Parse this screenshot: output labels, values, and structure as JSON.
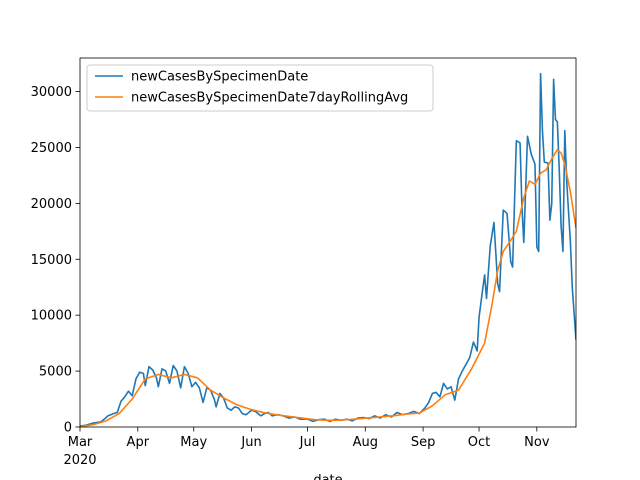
{
  "chart_data": {
    "type": "line",
    "title": "",
    "xlabel": "date",
    "ylabel": "",
    "x_ticks": [
      "Mar",
      "Apr",
      "May",
      "Jun",
      "Jul",
      "Aug",
      "Sep",
      "Oct",
      "Nov"
    ],
    "x_year_label": "2020",
    "x_range": [
      "2020-03-01",
      "2020-11-22"
    ],
    "y_ticks": [
      0,
      5000,
      10000,
      15000,
      20000,
      25000,
      30000
    ],
    "y_tick_labels": [
      "0",
      "5000",
      "10000",
      "15000",
      "20000",
      "25000",
      "30000"
    ],
    "ylim": [
      0,
      33000
    ],
    "grid": false,
    "legend_position": "top-left",
    "colors": {
      "daily": "#1f77b4",
      "rolling": "#ff7f0e"
    },
    "series": [
      {
        "name": "newCasesBySpecimenDate",
        "points": [
          [
            "2020-03-01",
            100
          ],
          [
            "2020-03-04",
            150
          ],
          [
            "2020-03-08",
            350
          ],
          [
            "2020-03-12",
            450
          ],
          [
            "2020-03-14",
            700
          ],
          [
            "2020-03-16",
            1000
          ],
          [
            "2020-03-19",
            1200
          ],
          [
            "2020-03-21",
            1300
          ],
          [
            "2020-03-23",
            2300
          ],
          [
            "2020-03-25",
            2700
          ],
          [
            "2020-03-27",
            3200
          ],
          [
            "2020-03-29",
            2800
          ],
          [
            "2020-03-31",
            4300
          ],
          [
            "2020-04-02",
            4900
          ],
          [
            "2020-04-04",
            4800
          ],
          [
            "2020-04-05",
            3700
          ],
          [
            "2020-04-07",
            5400
          ],
          [
            "2020-04-09",
            5100
          ],
          [
            "2020-04-11",
            4400
          ],
          [
            "2020-04-12",
            3600
          ],
          [
            "2020-04-14",
            5200
          ],
          [
            "2020-04-16",
            5000
          ],
          [
            "2020-04-18",
            3900
          ],
          [
            "2020-04-20",
            5500
          ],
          [
            "2020-04-22",
            5000
          ],
          [
            "2020-04-24",
            3500
          ],
          [
            "2020-04-26",
            5400
          ],
          [
            "2020-04-28",
            4800
          ],
          [
            "2020-04-30",
            3600
          ],
          [
            "2020-05-02",
            4000
          ],
          [
            "2020-05-04",
            3500
          ],
          [
            "2020-05-06",
            2200
          ],
          [
            "2020-05-08",
            3500
          ],
          [
            "2020-05-10",
            3300
          ],
          [
            "2020-05-12",
            2500
          ],
          [
            "2020-05-13",
            1800
          ],
          [
            "2020-05-15",
            3000
          ],
          [
            "2020-05-17",
            2600
          ],
          [
            "2020-05-19",
            1700
          ],
          [
            "2020-05-21",
            1500
          ],
          [
            "2020-05-23",
            1800
          ],
          [
            "2020-05-25",
            1700
          ],
          [
            "2020-05-27",
            1200
          ],
          [
            "2020-05-29",
            1100
          ],
          [
            "2020-06-01",
            1500
          ],
          [
            "2020-06-03",
            1400
          ],
          [
            "2020-06-06",
            1000
          ],
          [
            "2020-06-08",
            1200
          ],
          [
            "2020-06-10",
            1300
          ],
          [
            "2020-06-12",
            1000
          ],
          [
            "2020-06-15",
            1100
          ],
          [
            "2020-06-18",
            1000
          ],
          [
            "2020-06-21",
            800
          ],
          [
            "2020-06-24",
            900
          ],
          [
            "2020-06-27",
            700
          ],
          [
            "2020-07-01",
            700
          ],
          [
            "2020-07-04",
            500
          ],
          [
            "2020-07-07",
            650
          ],
          [
            "2020-07-10",
            700
          ],
          [
            "2020-07-13",
            500
          ],
          [
            "2020-07-16",
            700
          ],
          [
            "2020-07-19",
            600
          ],
          [
            "2020-07-22",
            700
          ],
          [
            "2020-07-25",
            550
          ],
          [
            "2020-07-28",
            800
          ],
          [
            "2020-07-31",
            850
          ],
          [
            "2020-08-03",
            750
          ],
          [
            "2020-08-06",
            1000
          ],
          [
            "2020-08-09",
            800
          ],
          [
            "2020-08-12",
            1100
          ],
          [
            "2020-08-15",
            900
          ],
          [
            "2020-08-18",
            1300
          ],
          [
            "2020-08-21",
            1100
          ],
          [
            "2020-08-24",
            1200
          ],
          [
            "2020-08-27",
            1400
          ],
          [
            "2020-08-30",
            1200
          ],
          [
            "2020-09-02",
            1700
          ],
          [
            "2020-09-04",
            2200
          ],
          [
            "2020-09-06",
            3000
          ],
          [
            "2020-09-08",
            3100
          ],
          [
            "2020-09-10",
            2700
          ],
          [
            "2020-09-12",
            3900
          ],
          [
            "2020-09-14",
            3400
          ],
          [
            "2020-09-16",
            3600
          ],
          [
            "2020-09-18",
            2400
          ],
          [
            "2020-09-20",
            4300
          ],
          [
            "2020-09-22",
            5000
          ],
          [
            "2020-09-24",
            5600
          ],
          [
            "2020-09-26",
            6200
          ],
          [
            "2020-09-28",
            7600
          ],
          [
            "2020-09-30",
            6800
          ],
          [
            "2020-10-01",
            9800
          ],
          [
            "2020-10-03",
            12400
          ],
          [
            "2020-10-04",
            13600
          ],
          [
            "2020-10-05",
            11500
          ],
          [
            "2020-10-07",
            16200
          ],
          [
            "2020-10-09",
            18300
          ],
          [
            "2020-10-11",
            12800
          ],
          [
            "2020-10-12",
            12100
          ],
          [
            "2020-10-14",
            19400
          ],
          [
            "2020-10-16",
            19100
          ],
          [
            "2020-10-17",
            17000
          ],
          [
            "2020-10-18",
            14800
          ],
          [
            "2020-10-19",
            14300
          ],
          [
            "2020-10-21",
            25600
          ],
          [
            "2020-10-23",
            25400
          ],
          [
            "2020-10-24",
            19700
          ],
          [
            "2020-10-25",
            16500
          ],
          [
            "2020-10-27",
            26000
          ],
          [
            "2020-10-29",
            24400
          ],
          [
            "2020-10-31",
            23500
          ],
          [
            "2020-11-01",
            16100
          ],
          [
            "2020-11-02",
            15700
          ],
          [
            "2020-11-03",
            31600
          ],
          [
            "2020-11-04",
            26500
          ],
          [
            "2020-11-05",
            23700
          ],
          [
            "2020-11-07",
            23600
          ],
          [
            "2020-11-08",
            18500
          ],
          [
            "2020-11-09",
            20000
          ],
          [
            "2020-11-10",
            31100
          ],
          [
            "2020-11-11",
            27500
          ],
          [
            "2020-11-12",
            27300
          ],
          [
            "2020-11-13",
            23100
          ],
          [
            "2020-11-14",
            18000
          ],
          [
            "2020-11-15",
            15700
          ],
          [
            "2020-11-16",
            26500
          ],
          [
            "2020-11-17",
            22000
          ],
          [
            "2020-11-19",
            16500
          ],
          [
            "2020-11-20",
            12500
          ],
          [
            "2020-11-22",
            7800
          ]
        ]
      },
      {
        "name": "newCasesBySpecimenDate7dayRollingAvg",
        "points": [
          [
            "2020-03-01",
            50
          ],
          [
            "2020-03-08",
            200
          ],
          [
            "2020-03-15",
            550
          ],
          [
            "2020-03-22",
            1200
          ],
          [
            "2020-03-29",
            2500
          ],
          [
            "2020-04-05",
            4300
          ],
          [
            "2020-04-12",
            4700
          ],
          [
            "2020-04-19",
            4400
          ],
          [
            "2020-04-26",
            4700
          ],
          [
            "2020-05-03",
            4400
          ],
          [
            "2020-05-10",
            3300
          ],
          [
            "2020-05-17",
            2600
          ],
          [
            "2020-05-24",
            2000
          ],
          [
            "2020-05-31",
            1600
          ],
          [
            "2020-06-07",
            1300
          ],
          [
            "2020-06-14",
            1100
          ],
          [
            "2020-06-21",
            950
          ],
          [
            "2020-06-28",
            800
          ],
          [
            "2020-07-05",
            650
          ],
          [
            "2020-07-12",
            600
          ],
          [
            "2020-07-19",
            620
          ],
          [
            "2020-07-26",
            700
          ],
          [
            "2020-08-02",
            800
          ],
          [
            "2020-08-09",
            900
          ],
          [
            "2020-08-16",
            1000
          ],
          [
            "2020-08-23",
            1150
          ],
          [
            "2020-08-30",
            1250
          ],
          [
            "2020-09-06",
            1900
          ],
          [
            "2020-09-13",
            2900
          ],
          [
            "2020-09-20",
            3300
          ],
          [
            "2020-09-27",
            5200
          ],
          [
            "2020-10-04",
            7500
          ],
          [
            "2020-10-08",
            11000
          ],
          [
            "2020-10-11",
            14000
          ],
          [
            "2020-10-14",
            15700
          ],
          [
            "2020-10-18",
            16700
          ],
          [
            "2020-10-21",
            17500
          ],
          [
            "2020-10-25",
            20500
          ],
          [
            "2020-10-28",
            22000
          ],
          [
            "2020-10-31",
            21700
          ],
          [
            "2020-11-03",
            22700
          ],
          [
            "2020-11-06",
            23000
          ],
          [
            "2020-11-09",
            24000
          ],
          [
            "2020-11-12",
            24800
          ],
          [
            "2020-11-14",
            24500
          ],
          [
            "2020-11-16",
            23500
          ],
          [
            "2020-11-19",
            21000
          ],
          [
            "2020-11-22",
            17800
          ]
        ]
      }
    ]
  }
}
